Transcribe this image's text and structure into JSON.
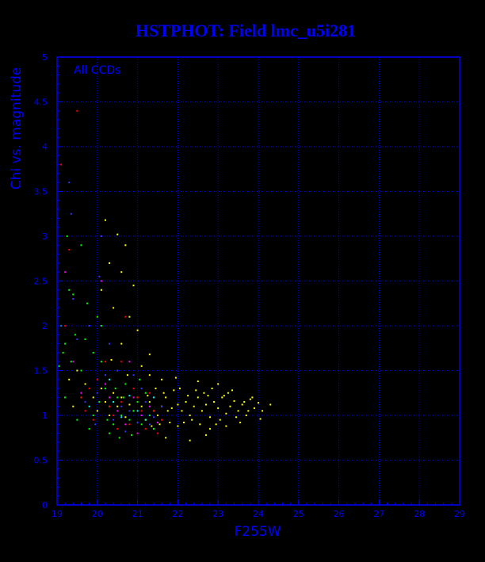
{
  "chart_data": {
    "type": "scatter",
    "title": "HSTPHOT: Field lmc_u5i281",
    "xlabel": "F255W",
    "ylabel": "Chi vs. magnitude",
    "annotation": "All CCDs",
    "xlim": [
      19,
      29
    ],
    "ylim": [
      0,
      5
    ],
    "x_ticks": [
      "19",
      "20",
      "21",
      "22",
      "23",
      "24",
      "25",
      "26",
      "27",
      "28",
      "29"
    ],
    "y_ticks": [
      "0",
      "0.5",
      "1",
      "1.5",
      "2",
      "2.5",
      "3",
      "3.5",
      "4",
      "4.5",
      "5"
    ],
    "grid": true,
    "colors": {
      "background": "#000000",
      "frame": "#0000ff",
      "text": "#0000ff",
      "grid_line": "#ffffff"
    },
    "series": [
      {
        "color": "#ffff00",
        "points": [
          [
            21.85,
            1.08
          ],
          [
            22.0,
            1.12
          ],
          [
            22.1,
            1.05
          ],
          [
            22.2,
            1.15
          ],
          [
            22.3,
            1.0
          ],
          [
            22.4,
            1.1
          ],
          [
            22.5,
            1.2
          ],
          [
            22.6,
            1.05
          ],
          [
            22.7,
            1.12
          ],
          [
            22.8,
            0.98
          ],
          [
            22.9,
            1.15
          ],
          [
            23.0,
            1.08
          ],
          [
            23.1,
            1.2
          ],
          [
            23.2,
            1.02
          ],
          [
            23.3,
            1.1
          ],
          [
            23.4,
            1.16
          ],
          [
            23.5,
            1.05
          ],
          [
            23.6,
            1.12
          ],
          [
            23.7,
            1.0
          ],
          [
            23.8,
            1.18
          ],
          [
            23.9,
            1.08
          ],
          [
            24.0,
            1.14
          ],
          [
            24.1,
            1.05
          ],
          [
            24.3,
            1.12
          ],
          [
            22.05,
            1.3
          ],
          [
            22.35,
            0.95
          ],
          [
            22.65,
            1.25
          ],
          [
            22.95,
            0.9
          ],
          [
            23.25,
            1.25
          ],
          [
            23.55,
            0.92
          ],
          [
            23.85,
            1.2
          ],
          [
            22.15,
            0.92
          ],
          [
            22.45,
            1.28
          ],
          [
            22.75,
            1.22
          ],
          [
            23.05,
            0.95
          ],
          [
            23.35,
            1.28
          ],
          [
            23.65,
            1.15
          ],
          [
            22.25,
            1.22
          ],
          [
            22.55,
            0.9
          ],
          [
            22.85,
            1.3
          ],
          [
            23.15,
            1.22
          ],
          [
            23.45,
            0.98
          ],
          [
            23.75,
            1.05
          ],
          [
            24.05,
            0.96
          ],
          [
            22.5,
            1.38
          ],
          [
            23.0,
            1.35
          ],
          [
            22.8,
            0.85
          ],
          [
            23.2,
            0.88
          ],
          [
            21.6,
            1.1
          ],
          [
            21.5,
            1.0
          ],
          [
            21.7,
            1.2
          ],
          [
            21.4,
            1.05
          ],
          [
            21.3,
            1.15
          ],
          [
            21.2,
            0.95
          ],
          [
            21.1,
            1.1
          ],
          [
            21.0,
            1.2
          ],
          [
            20.9,
            1.05
          ],
          [
            20.8,
            1.12
          ],
          [
            20.7,
            0.98
          ],
          [
            20.6,
            1.2
          ],
          [
            20.5,
            1.1
          ],
          [
            20.4,
            1.25
          ],
          [
            20.3,
            1.0
          ],
          [
            20.2,
            1.15
          ],
          [
            20.1,
            1.3
          ],
          [
            20.0,
            1.05
          ],
          [
            21.75,
            1.05
          ],
          [
            21.65,
            1.25
          ],
          [
            21.55,
            0.9
          ],
          [
            21.45,
            1.3
          ],
          [
            21.35,
            0.88
          ],
          [
            21.25,
            1.22
          ],
          [
            21.9,
            1.28
          ],
          [
            21.8,
            0.92
          ],
          [
            22.0,
            0.88
          ],
          [
            21.95,
            1.42
          ],
          [
            21.6,
            1.4
          ],
          [
            21.3,
            1.45
          ],
          [
            20.2,
            3.18
          ],
          [
            20.5,
            3.02
          ],
          [
            20.7,
            2.9
          ],
          [
            20.3,
            2.7
          ],
          [
            20.6,
            2.6
          ],
          [
            20.9,
            2.45
          ],
          [
            20.1,
            2.4
          ],
          [
            20.4,
            2.2
          ],
          [
            20.8,
            2.1
          ],
          [
            21.0,
            1.95
          ],
          [
            20.6,
            1.8
          ],
          [
            21.3,
            1.68
          ],
          [
            21.1,
            1.55
          ],
          [
            20.35,
            1.62
          ],
          [
            20.75,
            1.45
          ],
          [
            22.7,
            0.78
          ],
          [
            22.3,
            0.72
          ],
          [
            21.7,
            0.75
          ],
          [
            19.3,
            1.4
          ],
          [
            19.5,
            1.5
          ],
          [
            19.6,
            1.2
          ],
          [
            19.7,
            1.35
          ],
          [
            19.4,
            1.1
          ],
          [
            19.9,
            1.2
          ]
        ]
      },
      {
        "color": "#00ff00",
        "points": [
          [
            19.05,
            1.55
          ],
          [
            19.1,
            2.0
          ],
          [
            19.2,
            1.8
          ],
          [
            19.3,
            2.4
          ],
          [
            19.25,
            3.0
          ],
          [
            19.4,
            2.35
          ],
          [
            19.35,
            1.6
          ],
          [
            19.6,
            1.5
          ],
          [
            19.7,
            1.85
          ],
          [
            19.9,
            1.7
          ],
          [
            20.0,
            2.1
          ],
          [
            20.1,
            1.6
          ],
          [
            20.2,
            1.3
          ],
          [
            20.3,
            1.1
          ],
          [
            20.4,
            0.9
          ],
          [
            20.5,
            1.2
          ],
          [
            20.6,
            1.0
          ],
          [
            20.7,
            1.35
          ],
          [
            20.8,
            0.95
          ],
          [
            20.9,
            1.05
          ],
          [
            21.0,
            1.15
          ],
          [
            21.1,
            0.9
          ],
          [
            21.2,
            1.25
          ],
          [
            21.3,
            1.0
          ],
          [
            21.4,
            0.85
          ],
          [
            20.05,
            1.15
          ],
          [
            20.25,
            0.95
          ],
          [
            20.45,
            1.3
          ],
          [
            20.65,
            1.2
          ],
          [
            19.8,
            0.85
          ],
          [
            19.5,
            0.95
          ],
          [
            19.2,
            1.2
          ],
          [
            19.6,
            2.9
          ],
          [
            20.1,
            2.0
          ],
          [
            20.3,
            0.8
          ],
          [
            19.9,
            1.0
          ],
          [
            20.55,
            0.75
          ],
          [
            20.85,
            0.78
          ],
          [
            21.05,
            1.4
          ],
          [
            19.15,
            1.7
          ],
          [
            19.45,
            1.9
          ],
          [
            19.75,
            2.25
          ]
        ]
      },
      {
        "color": "#ff0000",
        "points": [
          [
            19.5,
            4.4
          ],
          [
            19.1,
            3.8
          ],
          [
            19.3,
            2.85
          ],
          [
            19.2,
            2.0
          ],
          [
            19.4,
            2.3
          ],
          [
            19.6,
            1.2
          ],
          [
            19.8,
            1.3
          ],
          [
            20.0,
            1.4
          ],
          [
            20.2,
            1.6
          ],
          [
            20.4,
            1.0
          ],
          [
            20.6,
            1.15
          ],
          [
            20.8,
            0.9
          ],
          [
            21.0,
            1.2
          ],
          [
            21.2,
            0.85
          ],
          [
            21.4,
            1.05
          ],
          [
            21.6,
            0.95
          ],
          [
            21.3,
            1.25
          ],
          [
            20.9,
            1.3
          ],
          [
            20.5,
            0.85
          ],
          [
            20.7,
            2.1
          ],
          [
            20.3,
            1.1
          ],
          [
            19.9,
            0.95
          ],
          [
            21.5,
            0.8
          ],
          [
            21.1,
            1.05
          ],
          [
            20.6,
            1.6
          ],
          [
            19.7,
            1.05
          ]
        ]
      },
      {
        "color": "#3333ff",
        "points": [
          [
            19.3,
            3.6
          ],
          [
            19.35,
            3.25
          ],
          [
            20.1,
            3.0
          ],
          [
            20.05,
            2.55
          ],
          [
            19.4,
            2.3
          ],
          [
            19.5,
            1.85
          ],
          [
            19.7,
            1.15
          ],
          [
            20.0,
            1.25
          ],
          [
            20.2,
            1.45
          ],
          [
            20.4,
            0.95
          ],
          [
            20.6,
            1.1
          ],
          [
            20.8,
            1.05
          ],
          [
            21.0,
            0.92
          ],
          [
            21.2,
            1.15
          ],
          [
            21.4,
            0.98
          ],
          [
            21.6,
            1.1
          ],
          [
            20.9,
            1.45
          ],
          [
            20.3,
            1.8
          ],
          [
            20.5,
            1.5
          ],
          [
            21.1,
            1.3
          ],
          [
            19.8,
            2.0
          ],
          [
            20.7,
            0.82
          ],
          [
            21.3,
            0.9
          ],
          [
            19.95,
            0.9
          ]
        ]
      },
      {
        "color": "#ff00ff",
        "points": [
          [
            19.2,
            2.6
          ],
          [
            19.4,
            1.6
          ],
          [
            20.1,
            2.5
          ],
          [
            20.3,
            1.2
          ],
          [
            20.5,
            1.05
          ],
          [
            20.7,
            0.9
          ],
          [
            20.9,
            1.2
          ],
          [
            21.1,
            1.0
          ],
          [
            21.3,
            1.1
          ],
          [
            21.5,
            0.92
          ],
          [
            20.8,
            1.6
          ],
          [
            20.2,
            1.35
          ],
          [
            19.6,
            1.25
          ],
          [
            21.0,
            0.8
          ]
        ]
      },
      {
        "color": "#00ffff",
        "points": [
          [
            20.4,
            1.15
          ],
          [
            20.6,
            0.98
          ],
          [
            20.8,
            1.22
          ],
          [
            21.0,
            1.05
          ],
          [
            21.2,
            0.95
          ],
          [
            20.3,
            1.4
          ],
          [
            19.8,
            1.1
          ],
          [
            21.4,
            1.2
          ]
        ]
      }
    ]
  }
}
